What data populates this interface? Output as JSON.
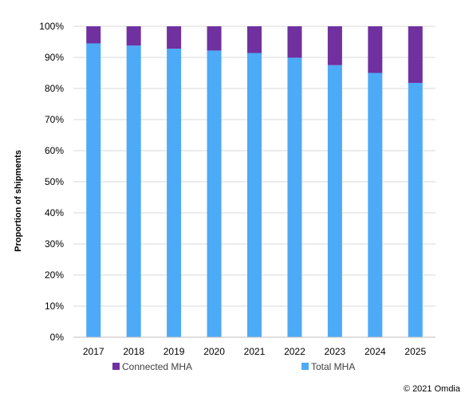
{
  "chart_data": {
    "type": "bar",
    "stacked": true,
    "categories": [
      "2017",
      "2018",
      "2019",
      "2020",
      "2021",
      "2022",
      "2023",
      "2024",
      "2025"
    ],
    "series": [
      {
        "name": "Total MHA",
        "color": "#4daaf6",
        "values": [
          94.5,
          93.8,
          92.8,
          92.2,
          91.4,
          89.9,
          87.5,
          85.0,
          81.8
        ]
      },
      {
        "name": "Connected MHA",
        "color": "#7030a0",
        "values": [
          5.5,
          6.2,
          7.2,
          7.8,
          8.6,
          10.1,
          12.5,
          15.0,
          18.2
        ]
      }
    ],
    "ylabel": "Proportion of shipments",
    "xlabel": "",
    "ylim": [
      0,
      100
    ],
    "yticks": [
      "0%",
      "10%",
      "20%",
      "30%",
      "40%",
      "50%",
      "60%",
      "70%",
      "80%",
      "90%",
      "100%"
    ],
    "grid": true,
    "legend_position": "bottom"
  },
  "legend": {
    "connected_label": "Connected MHA",
    "total_label": "Total MHA"
  },
  "footer": {
    "copyright": "© 2021 Omdia"
  }
}
